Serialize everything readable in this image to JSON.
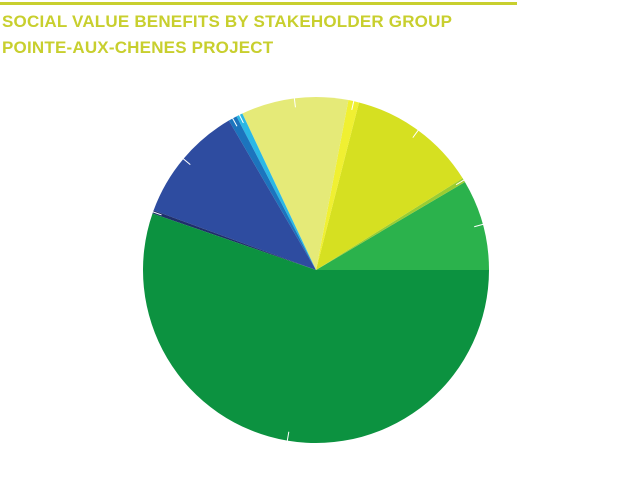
{
  "header": {
    "title": "SOCIAL VALUE BENEFITS BY STAKEHOLDER GROUP",
    "subtitle": "POINTE-AUX-CHENES PROJECT"
  },
  "colors": {
    "title": "#c8cf2e",
    "rule": "#c8cf2e"
  },
  "chart_data": {
    "type": "pie",
    "title": "SOCIAL VALUE BENEFITS BY STAKEHOLDER GROUP",
    "subtitle": "POINTE-AUX-CHENES PROJECT",
    "start_angle_deg": 0,
    "direction": "counterclockwise",
    "legend": "none",
    "slices": [
      {
        "value": 8.5,
        "color": "#2bb24c"
      },
      {
        "value": 0.4,
        "color": "#9acd32"
      },
      {
        "value": 12.1,
        "color": "#d6e021"
      },
      {
        "value": 1.0,
        "color": "#f0f032"
      },
      {
        "value": 10.0,
        "color": "#e5ea78"
      },
      {
        "value": 0.6,
        "color": "#2bb8e5"
      },
      {
        "value": 0.8,
        "color": "#1c74bd"
      },
      {
        "value": 11.0,
        "color": "#2e4ca0"
      },
      {
        "value": 0.3,
        "color": "#1f2f6b"
      },
      {
        "value": 55.3,
        "color": "#0c9240"
      }
    ]
  }
}
